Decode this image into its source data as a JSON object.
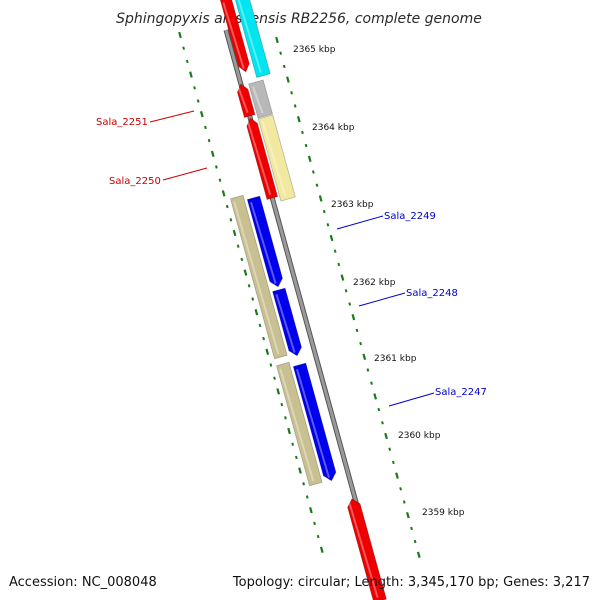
{
  "title": "Sphingopyxis alaskensis RB2256, complete genome",
  "footer": {
    "accession": "Accession: NC_008048",
    "summary": "Topology: circular; Length: 3,345,170 bp; Genes: 3,217"
  },
  "colors": {
    "backbone": "#8a8a8a",
    "ticks": "#1a7a1a",
    "label_red": "#cc0000",
    "label_blue": "#0000cc",
    "cyan": "#00e5f0",
    "red": "#ee0000",
    "grey": "#b8b8b8",
    "yellow": "#f2e9a0",
    "blue": "#0000ee",
    "khaki": "#c8c090"
  },
  "kbp_labels": [
    "2365 kbp",
    "2364 kbp",
    "2363 kbp",
    "2362 kbp",
    "2361 kbp",
    "2360 kbp",
    "2359 kbp"
  ],
  "gene_labels": [
    {
      "id": "sala-2251",
      "text": "Sala_2251",
      "color": "red"
    },
    {
      "id": "sala-2250",
      "text": "Sala_2250",
      "color": "red"
    },
    {
      "id": "sala-2249",
      "text": "Sala_2249",
      "color": "blue"
    },
    {
      "id": "sala-2248",
      "text": "Sala_2248",
      "color": "blue"
    },
    {
      "id": "sala-2247",
      "text": "Sala_2247",
      "color": "blue"
    }
  ]
}
